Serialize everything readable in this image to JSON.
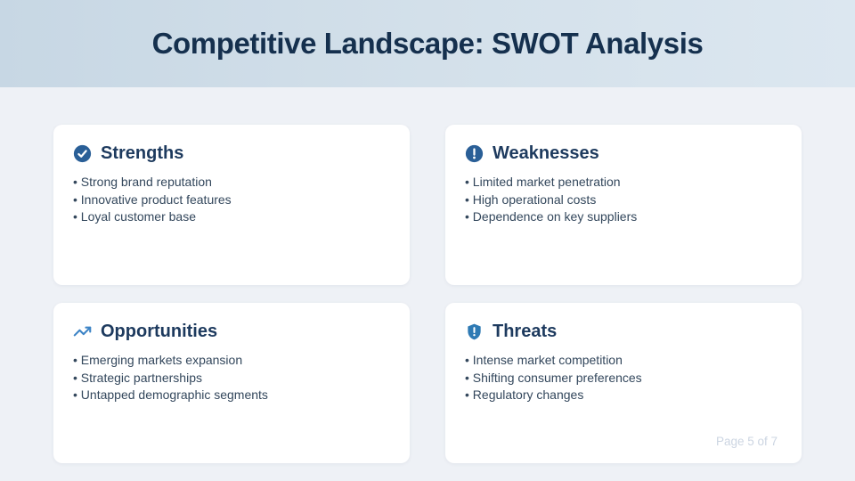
{
  "slide": {
    "title": "Competitive Landscape: SWOT Analysis",
    "page_label": "Page 5 of 7"
  },
  "cards": [
    {
      "id": "strengths",
      "icon": "check-circle-icon",
      "title": "Strengths",
      "items": [
        "Strong brand reputation",
        "Innovative product features",
        "Loyal customer base"
      ]
    },
    {
      "id": "weaknesses",
      "icon": "alert-circle-icon",
      "title": "Weaknesses",
      "items": [
        "Limited market penetration",
        "High operational costs",
        "Dependence on key suppliers"
      ]
    },
    {
      "id": "opportunities",
      "icon": "trending-up-icon",
      "title": "Opportunities",
      "items": [
        "Emerging markets expansion",
        "Strategic partnerships",
        "Untapped demographic segments"
      ]
    },
    {
      "id": "threats",
      "icon": "shield-alert-icon",
      "title": "Threats",
      "items": [
        "Intense market competition",
        "Shifting consumer preferences",
        "Regulatory changes"
      ]
    }
  ],
  "colors": {
    "header_gradient_start": "#c7d7e4",
    "header_gradient_end": "#dce7f0",
    "body_background": "#eef1f6",
    "title_navy": "#15304e",
    "card_title_navy": "#1d3a5e",
    "bullet_text": "#33475c",
    "icon_circle_blue": "#2a5f97",
    "icon_arrow_blue": "#3d84c6",
    "icon_shield_blue": "#2e7ab4",
    "page_label_gray": "#ccd5e2"
  }
}
